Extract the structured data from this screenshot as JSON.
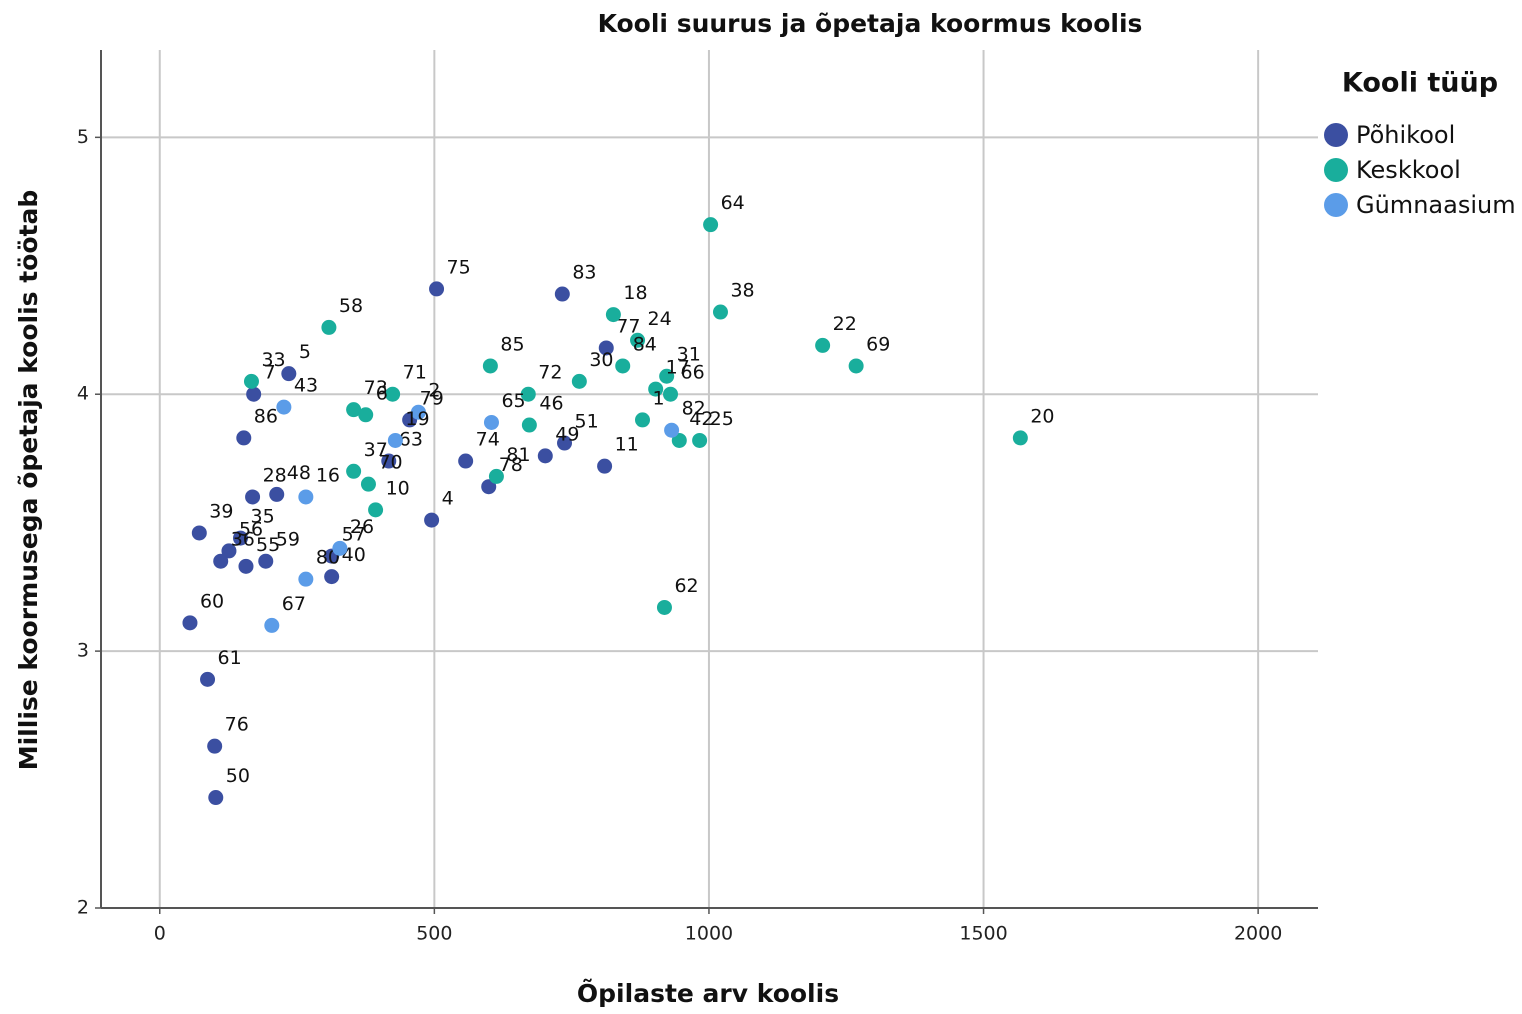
{
  "chart_data": {
    "type": "scatter",
    "title": "Kooli suurus ja õpetaja koormus koolis",
    "x_label": "Õpilaste arv koolis",
    "y_label": "Millise koormusega õpetaja koolis töötab",
    "legend_title": "Kooli tüüp",
    "legend_position": "right",
    "grid": true,
    "xlim": [
      -107,
      2109
    ],
    "xticks": [
      0,
      500,
      1000,
      1500,
      2000
    ],
    "ylim": [
      2,
      5.34
    ],
    "yticks": [
      2,
      3,
      4,
      5
    ],
    "series": [
      {
        "name": "Põhikool",
        "color": "#3b4fa1",
        "labels": [
          75,
          83,
          77,
          5,
          7,
          86,
          79,
          63,
          74,
          51,
          49,
          11,
          78,
          4,
          28,
          48,
          39,
          35,
          56,
          36,
          55,
          59,
          57,
          40,
          60,
          61,
          76,
          50
        ],
        "x": [
          504,
          733,
          813,
          235,
          171,
          153,
          455,
          417,
          557,
          737,
          702,
          810,
          599,
          495,
          169,
          213,
          72,
          147,
          126,
          111,
          157,
          193,
          313,
          313,
          55,
          87,
          100,
          102
        ],
        "values": [
          4.41,
          4.39,
          4.18,
          4.08,
          4.0,
          3.83,
          3.9,
          3.74,
          3.74,
          3.81,
          3.76,
          3.72,
          3.64,
          3.51,
          3.6,
          3.61,
          3.46,
          3.44,
          3.39,
          3.35,
          3.33,
          3.35,
          3.37,
          3.29,
          3.11,
          2.89,
          2.63,
          2.43
        ]
      },
      {
        "name": "Keskkool",
        "color": "#19ae9c",
        "labels": [
          64,
          18,
          38,
          24,
          22,
          69,
          58,
          85,
          31,
          30,
          17,
          66,
          84,
          72,
          46,
          71,
          73,
          6,
          33,
          1,
          42,
          25,
          81,
          62,
          20,
          37,
          70,
          10
        ],
        "x": [
          1003,
          826,
          1021,
          870,
          1207,
          1268,
          308,
          602,
          923,
          764,
          903,
          930,
          843,
          671,
          673,
          424,
          353,
          375,
          167,
          879,
          946,
          983,
          613,
          919,
          1567,
          353,
          380,
          393
        ],
        "values": [
          4.66,
          4.31,
          4.32,
          4.21,
          4.19,
          4.11,
          4.26,
          4.11,
          4.07,
          4.05,
          4.02,
          4.0,
          4.11,
          4.0,
          3.88,
          4.0,
          3.94,
          3.92,
          4.05,
          3.9,
          3.82,
          3.82,
          3.68,
          3.17,
          3.83,
          3.7,
          3.65,
          3.55
        ]
      },
      {
        "name": "Gümnaasium",
        "color": "#5b9ce8",
        "labels": [
          43,
          65,
          82,
          2,
          19,
          16,
          80,
          26,
          67
        ],
        "x": [
          226,
          604,
          932,
          471,
          429,
          266,
          266,
          328,
          204
        ],
        "values": [
          3.95,
          3.89,
          3.86,
          3.93,
          3.82,
          3.6,
          3.28,
          3.4,
          3.1
        ]
      }
    ]
  }
}
